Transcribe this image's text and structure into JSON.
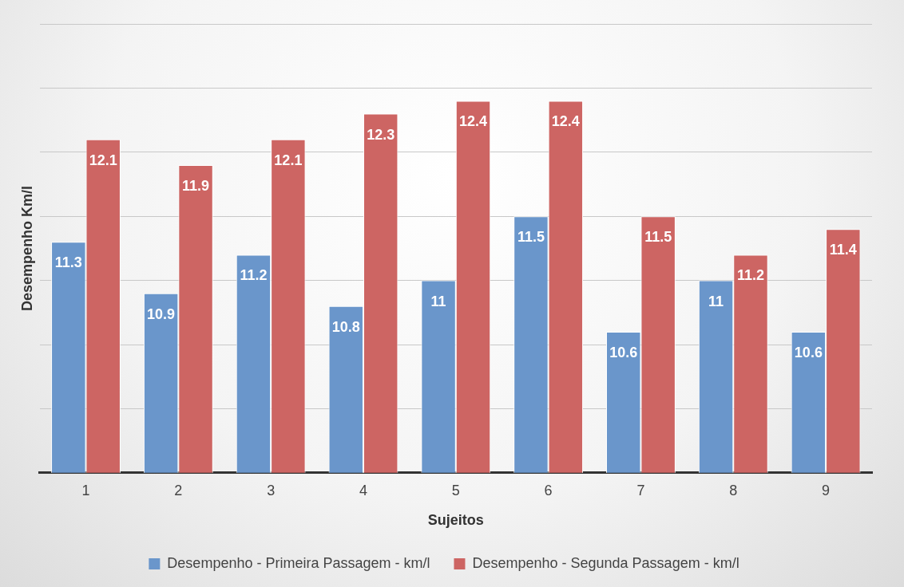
{
  "chart_data": {
    "type": "bar",
    "xlabel": "Sujeitos",
    "ylabel": "Desempenho Km/l",
    "categories": [
      "1",
      "2",
      "3",
      "4",
      "5",
      "6",
      "7",
      "8",
      "9"
    ],
    "series": [
      {
        "name": "Desempenho - Primeira Passagem - km/l",
        "color": "#6a96cb",
        "values": [
          11.3,
          10.9,
          11.2,
          10.8,
          11,
          11.5,
          10.6,
          11,
          10.6
        ]
      },
      {
        "name": "Desempenho - Segunda Passagem - km/l",
        "color": "#cd6563",
        "values": [
          12.1,
          11.9,
          12.1,
          12.3,
          12.4,
          12.4,
          11.5,
          11.2,
          11.4
        ]
      }
    ],
    "ylim": [
      9.5,
      13
    ],
    "yticks": [
      {
        "value": 9.5,
        "label": null
      },
      {
        "value": 10,
        "label": null
      },
      {
        "value": 10.5,
        "label": null
      },
      {
        "value": 11,
        "label": null
      },
      {
        "value": 11.5,
        "label": null
      },
      {
        "value": 12,
        "label": null
      },
      {
        "value": 12.5,
        "label": null
      },
      {
        "value": 13,
        "label": null
      }
    ],
    "grid": "y",
    "legend": "bottom",
    "data_labels": true,
    "tick_labels": "x"
  }
}
